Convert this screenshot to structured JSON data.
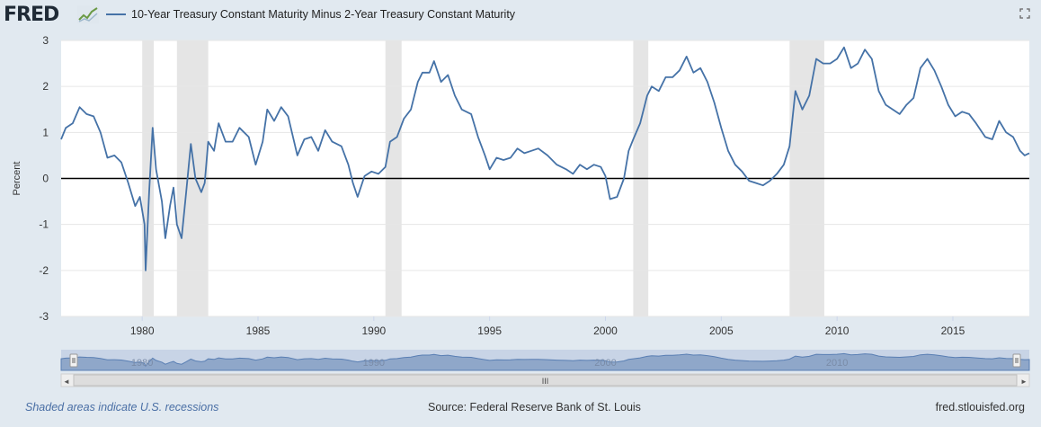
{
  "header": {
    "logo_text": "FRED",
    "logo_icon": "chart-line-icon",
    "expand_icon": "fullscreen-icon"
  },
  "legend": {
    "label": "10-Year Treasury Constant Maturity Minus 2-Year Treasury Constant Maturity",
    "color": "#4572a7"
  },
  "footer": {
    "recessions_note": "Shaded areas indicate U.S. recessions",
    "source": "Source: Federal Reserve Bank of St. Louis",
    "site": "fred.stlouisfed.org"
  },
  "navigator": {
    "year_labels": [
      "1980",
      "1990",
      "2000",
      "2010"
    ],
    "handle_glyph": "III",
    "left_arrow": "◄",
    "right_arrow": "►"
  },
  "chart_data": {
    "type": "line",
    "ylabel": "Percent",
    "xlim": [
      1976.5,
      2018.3
    ],
    "ylim": [
      -3,
      3
    ],
    "y_ticks": [
      "3",
      "2",
      "1",
      "0",
      "-1",
      "-2",
      "-3"
    ],
    "x_ticks": [
      "1980",
      "1985",
      "1990",
      "1995",
      "2000",
      "2005",
      "2010",
      "2015"
    ],
    "zero_line": true,
    "grid": "horizontal",
    "colors": {
      "line": "#4572a7",
      "recession": "#e5e5e5",
      "zero": "#000000"
    },
    "recessions": [
      [
        1980.0,
        1980.5
      ],
      [
        1981.5,
        1982.85
      ],
      [
        1990.5,
        1991.2
      ],
      [
        2001.2,
        2001.85
      ],
      [
        2007.95,
        2009.45
      ]
    ],
    "series": [
      {
        "values": [
          [
            1976.5,
            0.85
          ],
          [
            1976.7,
            1.1
          ],
          [
            1977.0,
            1.2
          ],
          [
            1977.3,
            1.55
          ],
          [
            1977.6,
            1.4
          ],
          [
            1977.9,
            1.35
          ],
          [
            1978.2,
            1.0
          ],
          [
            1978.5,
            0.45
          ],
          [
            1978.8,
            0.5
          ],
          [
            1979.1,
            0.35
          ],
          [
            1979.4,
            -0.1
          ],
          [
            1979.7,
            -0.6
          ],
          [
            1979.9,
            -0.4
          ],
          [
            1980.1,
            -1.0
          ],
          [
            1980.15,
            -2.0
          ],
          [
            1980.3,
            -0.3
          ],
          [
            1980.45,
            1.1
          ],
          [
            1980.6,
            0.2
          ],
          [
            1980.85,
            -0.5
          ],
          [
            1981.0,
            -1.3
          ],
          [
            1981.2,
            -0.6
          ],
          [
            1981.35,
            -0.2
          ],
          [
            1981.5,
            -1.0
          ],
          [
            1981.7,
            -1.3
          ],
          [
            1981.9,
            -0.3
          ],
          [
            1982.1,
            0.75
          ],
          [
            1982.3,
            0.0
          ],
          [
            1982.55,
            -0.3
          ],
          [
            1982.7,
            -0.1
          ],
          [
            1982.85,
            0.8
          ],
          [
            1983.1,
            0.6
          ],
          [
            1983.3,
            1.2
          ],
          [
            1983.6,
            0.8
          ],
          [
            1983.9,
            0.8
          ],
          [
            1984.2,
            1.1
          ],
          [
            1984.6,
            0.9
          ],
          [
            1984.9,
            0.3
          ],
          [
            1985.2,
            0.8
          ],
          [
            1985.4,
            1.5
          ],
          [
            1985.7,
            1.25
          ],
          [
            1986.0,
            1.55
          ],
          [
            1986.3,
            1.35
          ],
          [
            1986.7,
            0.5
          ],
          [
            1987.0,
            0.85
          ],
          [
            1987.3,
            0.9
          ],
          [
            1987.6,
            0.6
          ],
          [
            1987.9,
            1.05
          ],
          [
            1988.2,
            0.8
          ],
          [
            1988.6,
            0.7
          ],
          [
            1988.9,
            0.3
          ],
          [
            1989.1,
            -0.1
          ],
          [
            1989.3,
            -0.4
          ],
          [
            1989.6,
            0.05
          ],
          [
            1989.9,
            0.15
          ],
          [
            1990.2,
            0.1
          ],
          [
            1990.5,
            0.25
          ],
          [
            1990.7,
            0.8
          ],
          [
            1991.0,
            0.9
          ],
          [
            1991.3,
            1.3
          ],
          [
            1991.6,
            1.5
          ],
          [
            1991.9,
            2.1
          ],
          [
            1992.1,
            2.3
          ],
          [
            1992.4,
            2.3
          ],
          [
            1992.6,
            2.55
          ],
          [
            1992.9,
            2.1
          ],
          [
            1993.2,
            2.25
          ],
          [
            1993.5,
            1.8
          ],
          [
            1993.8,
            1.5
          ],
          [
            1994.2,
            1.4
          ],
          [
            1994.5,
            0.9
          ],
          [
            1994.8,
            0.5
          ],
          [
            1995.0,
            0.2
          ],
          [
            1995.3,
            0.45
          ],
          [
            1995.6,
            0.4
          ],
          [
            1995.9,
            0.45
          ],
          [
            1996.2,
            0.65
          ],
          [
            1996.5,
            0.55
          ],
          [
            1996.8,
            0.6
          ],
          [
            1997.1,
            0.65
          ],
          [
            1997.5,
            0.5
          ],
          [
            1997.9,
            0.3
          ],
          [
            1998.3,
            0.2
          ],
          [
            1998.6,
            0.1
          ],
          [
            1998.9,
            0.3
          ],
          [
            1999.2,
            0.2
          ],
          [
            1999.5,
            0.3
          ],
          [
            1999.8,
            0.25
          ],
          [
            2000.0,
            0.05
          ],
          [
            2000.2,
            -0.45
          ],
          [
            2000.5,
            -0.4
          ],
          [
            2000.8,
            0.0
          ],
          [
            2001.0,
            0.6
          ],
          [
            2001.2,
            0.85
          ],
          [
            2001.5,
            1.2
          ],
          [
            2001.8,
            1.8
          ],
          [
            2002.0,
            2.0
          ],
          [
            2002.3,
            1.9
          ],
          [
            2002.6,
            2.2
          ],
          [
            2002.9,
            2.2
          ],
          [
            2003.2,
            2.35
          ],
          [
            2003.5,
            2.65
          ],
          [
            2003.8,
            2.3
          ],
          [
            2004.1,
            2.4
          ],
          [
            2004.4,
            2.1
          ],
          [
            2004.7,
            1.65
          ],
          [
            2005.0,
            1.1
          ],
          [
            2005.3,
            0.6
          ],
          [
            2005.6,
            0.3
          ],
          [
            2005.9,
            0.15
          ],
          [
            2006.2,
            -0.05
          ],
          [
            2006.5,
            -0.1
          ],
          [
            2006.8,
            -0.15
          ],
          [
            2007.1,
            -0.05
          ],
          [
            2007.4,
            0.1
          ],
          [
            2007.7,
            0.3
          ],
          [
            2007.95,
            0.7
          ],
          [
            2008.2,
            1.9
          ],
          [
            2008.5,
            1.5
          ],
          [
            2008.8,
            1.8
          ],
          [
            2009.1,
            2.6
          ],
          [
            2009.4,
            2.5
          ],
          [
            2009.7,
            2.5
          ],
          [
            2010.0,
            2.6
          ],
          [
            2010.3,
            2.85
          ],
          [
            2010.6,
            2.4
          ],
          [
            2010.9,
            2.5
          ],
          [
            2011.2,
            2.8
          ],
          [
            2011.5,
            2.6
          ],
          [
            2011.8,
            1.9
          ],
          [
            2012.1,
            1.6
          ],
          [
            2012.4,
            1.5
          ],
          [
            2012.7,
            1.4
          ],
          [
            2013.0,
            1.6
          ],
          [
            2013.3,
            1.75
          ],
          [
            2013.6,
            2.4
          ],
          [
            2013.9,
            2.6
          ],
          [
            2014.2,
            2.35
          ],
          [
            2014.5,
            2.0
          ],
          [
            2014.8,
            1.6
          ],
          [
            2015.1,
            1.35
          ],
          [
            2015.4,
            1.45
          ],
          [
            2015.7,
            1.4
          ],
          [
            2016.0,
            1.2
          ],
          [
            2016.4,
            0.9
          ],
          [
            2016.7,
            0.85
          ],
          [
            2017.0,
            1.25
          ],
          [
            2017.3,
            1.0
          ],
          [
            2017.6,
            0.9
          ],
          [
            2017.9,
            0.6
          ],
          [
            2018.1,
            0.5
          ],
          [
            2018.3,
            0.55
          ]
        ]
      }
    ]
  }
}
